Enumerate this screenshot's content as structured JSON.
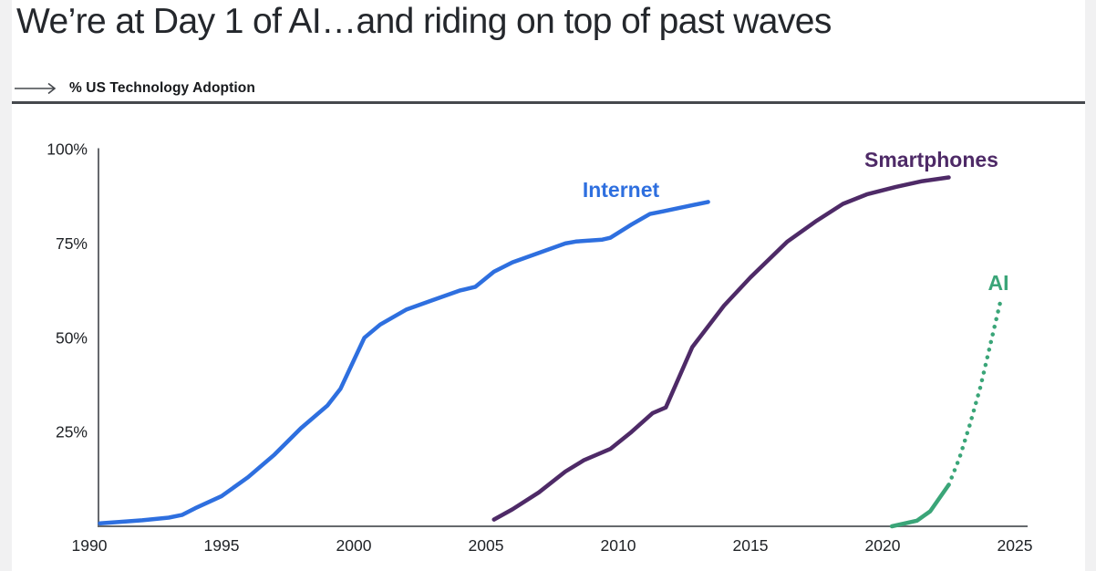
{
  "header": {
    "title": "We’re at Day 1 of AI…and riding on top of past waves",
    "arrow_icon": "long-right-arrow",
    "kicker": "% US Technology Adoption"
  },
  "colors": {
    "internet": "#2e6fdf",
    "smartphones": "#4e2a67",
    "ai": "#3aa578",
    "axis": "#66696d",
    "rule": "#45484d",
    "text": "#202327",
    "page_background": "#f1f1f2",
    "panel_background": "#ffffff"
  },
  "chart_data": {
    "type": "line",
    "title": "% US Technology Adoption",
    "xlabel": "",
    "ylabel": "% US Technology Adoption",
    "xlim": [
      1990,
      2025
    ],
    "ylim": [
      0,
      100
    ],
    "grid": false,
    "legend": "inline-labels",
    "x_ticks": [
      1990,
      1995,
      2000,
      2005,
      2010,
      2015,
      2020,
      2025
    ],
    "y_ticks": [
      {
        "value": 100,
        "label": "100%"
      },
      {
        "value": 75,
        "label": "75%"
      },
      {
        "value": 50,
        "label": "50%"
      },
      {
        "value": 25,
        "label": "25%"
      }
    ],
    "series": [
      {
        "name": "Internet",
        "color": "#2e6fdf",
        "line_style": "solid",
        "points": [
          [
            1990.4,
            0.8
          ],
          [
            1991,
            1.1
          ],
          [
            1992,
            1.6
          ],
          [
            1993,
            2.3
          ],
          [
            1993.5,
            3
          ],
          [
            1994,
            4.8
          ],
          [
            1995,
            8
          ],
          [
            1996,
            13
          ],
          [
            1997,
            19
          ],
          [
            1998,
            26
          ],
          [
            1999,
            32
          ],
          [
            1999.5,
            36.5
          ],
          [
            2000.4,
            50
          ],
          [
            2001,
            53.5
          ],
          [
            2002,
            57.5
          ],
          [
            2003,
            60
          ],
          [
            2004,
            62.5
          ],
          [
            2004.6,
            63.5
          ],
          [
            2005.3,
            67.5
          ],
          [
            2006,
            70
          ],
          [
            2007,
            72.5
          ],
          [
            2008,
            75
          ],
          [
            2008.4,
            75.5
          ],
          [
            2009.4,
            76
          ],
          [
            2009.7,
            76.5
          ],
          [
            2010.5,
            80
          ],
          [
            2011.2,
            82.8
          ],
          [
            2011.7,
            83.5
          ],
          [
            2012.5,
            84.7
          ],
          [
            2013.4,
            86
          ]
        ]
      },
      {
        "name": "Smartphones",
        "color": "#4e2a67",
        "line_style": "solid",
        "points": [
          [
            2005.3,
            1.8
          ],
          [
            2006,
            4.5
          ],
          [
            2007,
            9
          ],
          [
            2008,
            14.5
          ],
          [
            2008.7,
            17.5
          ],
          [
            2009.7,
            20.5
          ],
          [
            2010.5,
            25
          ],
          [
            2011.3,
            30
          ],
          [
            2011.8,
            31.5
          ],
          [
            2012.8,
            47.5
          ],
          [
            2014,
            58.5
          ],
          [
            2015,
            66
          ],
          [
            2016.4,
            75.5
          ],
          [
            2017.5,
            81
          ],
          [
            2018.5,
            85.5
          ],
          [
            2019.4,
            88
          ],
          [
            2020.5,
            90
          ],
          [
            2021.5,
            91.5
          ],
          [
            2022.5,
            92.5
          ]
        ]
      },
      {
        "name": "AI",
        "color": "#3aa578",
        "line_style": "solid-then-dotted",
        "solid_points": [
          [
            2020.35,
            0
          ],
          [
            2021.3,
            1.5
          ],
          [
            2021.8,
            4
          ],
          [
            2022.5,
            11
          ]
        ],
        "dotted_points": [
          [
            2022.5,
            11
          ],
          [
            2022.9,
            18
          ],
          [
            2023.3,
            27
          ],
          [
            2023.7,
            37
          ],
          [
            2024.1,
            49
          ],
          [
            2024.45,
            59.5
          ]
        ]
      }
    ]
  }
}
